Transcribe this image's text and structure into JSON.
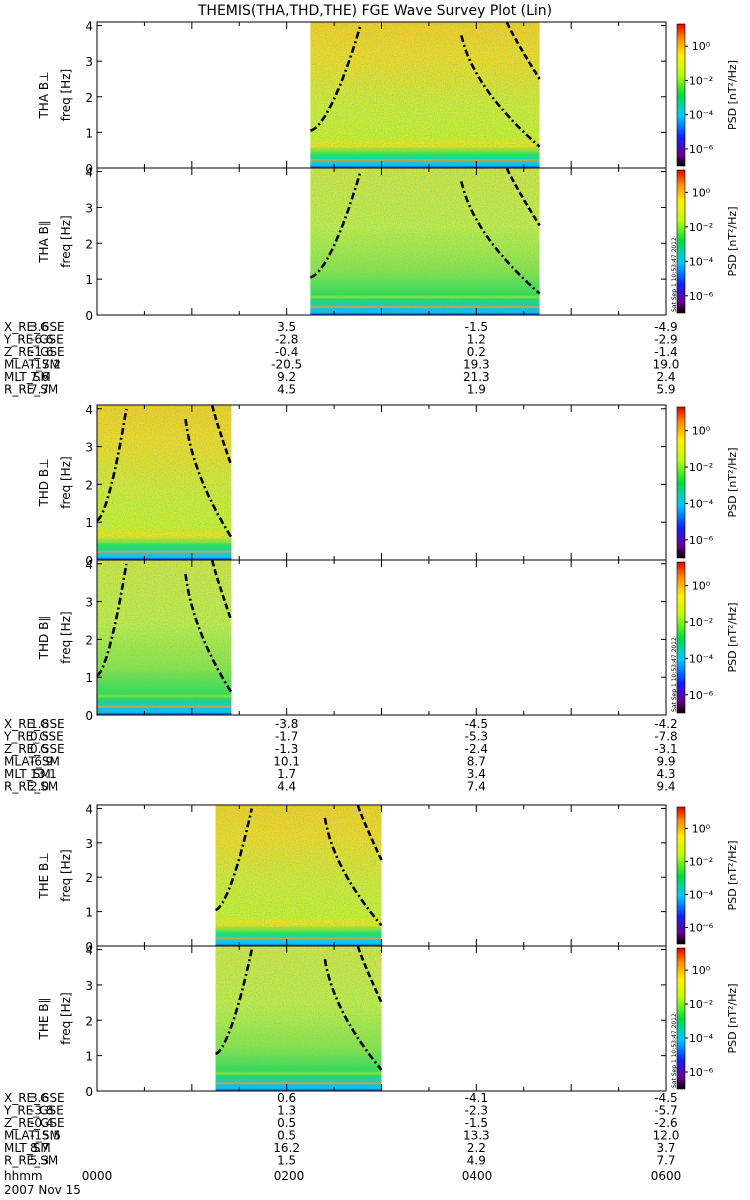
{
  "title": "THEMIS(THA,THD,THE) FGE Wave Survey Plot (Lin)",
  "colorbar": {
    "label": "PSD [nT²/Hz]",
    "ticks": [
      "10⁰",
      "10⁻²",
      "10⁻⁴",
      "10⁻⁶"
    ],
    "exponents": [
      0,
      -2,
      -4,
      -6
    ]
  },
  "stamp": "Sat Sep 1 10:53:47 2012",
  "footer": {
    "row_label": "hhmm",
    "date": "2007 Nov 15",
    "times": [
      "0000",
      "0200",
      "0400",
      "0600"
    ]
  },
  "chart_data": [
    {
      "type": "heatmap",
      "probe": "THA",
      "panel": "THA B⊥",
      "ylabel": "freq [Hz]",
      "ylim": [
        0,
        4.1
      ],
      "yticks": [
        0,
        1,
        2,
        3,
        4
      ],
      "data_span_hhmm": [
        "0215",
        "0440"
      ]
    },
    {
      "type": "heatmap",
      "probe": "THA",
      "panel": "THA B∥",
      "ylabel": "freq [Hz]",
      "ylim": [
        0,
        4.1
      ],
      "yticks": [
        0,
        1,
        2,
        3,
        4
      ],
      "data_span_hhmm": [
        "0215",
        "0440"
      ]
    },
    {
      "type": "heatmap",
      "probe": "THD",
      "panel": "THD B⊥",
      "ylabel": "freq [Hz]",
      "ylim": [
        0,
        4.1
      ],
      "yticks": [
        0,
        1,
        2,
        3,
        4
      ],
      "data_span_hhmm": [
        "0000",
        "0125"
      ]
    },
    {
      "type": "heatmap",
      "probe": "THD",
      "panel": "THD B∥",
      "ylabel": "freq [Hz]",
      "ylim": [
        0,
        4.1
      ],
      "yticks": [
        0,
        1,
        2,
        3,
        4
      ],
      "data_span_hhmm": [
        "0000",
        "0125"
      ]
    },
    {
      "type": "heatmap",
      "probe": "THE",
      "panel": "THE B⊥",
      "ylabel": "freq [Hz]",
      "ylim": [
        0,
        4.1
      ],
      "yticks": [
        0,
        1,
        2,
        3,
        4
      ],
      "data_span_hhmm": [
        "0115",
        "0300"
      ]
    },
    {
      "type": "heatmap",
      "probe": "THE",
      "panel": "THE B∥",
      "ylabel": "freq [Hz]",
      "ylim": [
        0,
        4.1
      ],
      "yticks": [
        0,
        1,
        2,
        3,
        4
      ],
      "data_span_hhmm": [
        "0115",
        "0300"
      ]
    }
  ],
  "ephemeris": [
    {
      "probe": "THA",
      "rows": [
        {
          "label": "X_RE_GSE",
          "values": [
            "3.6",
            "3.5",
            "-1.5",
            "-4.9"
          ]
        },
        {
          "label": "Y_RE_GSE",
          "values": [
            "-6.6",
            "-2.8",
            "1.2",
            "-2.9"
          ]
        },
        {
          "label": "Z_RE_GSE",
          "values": [
            "-1.6",
            "-0.4",
            "0.2",
            "-1.4"
          ]
        },
        {
          "label": "MLAT_SM",
          "values": [
            "-17.2",
            "-20.5",
            "19.3",
            "19.0"
          ]
        },
        {
          "label": "MLT_SM",
          "values": [
            "7.6",
            "9.2",
            "21.3",
            "2.4"
          ]
        },
        {
          "label": "R_RE_SM",
          "values": [
            "7.7",
            "4.5",
            "1.9",
            "5.9"
          ]
        }
      ]
    },
    {
      "probe": "THD",
      "rows": [
        {
          "label": "X_RE_GSE",
          "values": [
            "1.8",
            "-3.8",
            "-4.5",
            "-4.2"
          ]
        },
        {
          "label": "Y_RE_GSE",
          "values": [
            "0.5",
            "-1.7",
            "-5.3",
            "-7.8"
          ]
        },
        {
          "label": "Z_RE_GSE",
          "values": [
            "0.5",
            "-1.3",
            "-2.4",
            "-3.1"
          ]
        },
        {
          "label": "MLAT_SM",
          "values": [
            "-6.9",
            "10.1",
            "8.7",
            "9.9"
          ]
        },
        {
          "label": "MLT_SM",
          "values": [
            "13.1",
            "1.7",
            "3.4",
            "4.3"
          ]
        },
        {
          "label": "R_RE_SM",
          "values": [
            "2.0",
            "4.4",
            "7.4",
            "9.4"
          ]
        }
      ]
    },
    {
      "probe": "THE",
      "rows": [
        {
          "label": "X_RE_GSE",
          "values": [
            "3.6",
            "0.6",
            "-4.1",
            "-4.5"
          ]
        },
        {
          "label": "Y_RE_GSE",
          "values": [
            "-3.8",
            "1.3",
            "-2.3",
            "-5.7"
          ]
        },
        {
          "label": "Z_RE_GSE",
          "values": [
            "-0.4",
            "0.5",
            "-1.5",
            "-2.6"
          ]
        },
        {
          "label": "MLAT_SM",
          "values": [
            "-15.5",
            "0.5",
            "13.3",
            "12.0"
          ]
        },
        {
          "label": "MLT_SM",
          "values": [
            "8.7",
            "16.2",
            "2.2",
            "3.7"
          ]
        },
        {
          "label": "R_RE_SM",
          "values": [
            "5.3",
            "1.5",
            "4.9",
            "7.7"
          ]
        }
      ]
    }
  ]
}
